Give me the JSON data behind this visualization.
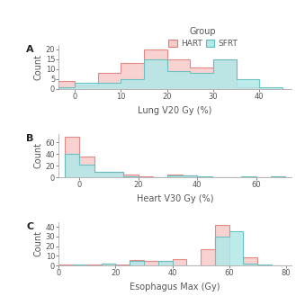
{
  "title_legend": "Group",
  "panel_labels": [
    "A",
    "B",
    "C"
  ],
  "panel_A": {
    "xlabel": "Lung V20 Gy (%)",
    "ylabel": "Count",
    "xlim": [
      -3.5,
      47
    ],
    "ylim": [
      0,
      22
    ],
    "yticks": [
      0,
      5,
      10,
      15,
      20
    ],
    "xticks": [
      0,
      10,
      20,
      30,
      40
    ],
    "bin_edges": [
      -5,
      0,
      5,
      10,
      15,
      20,
      25,
      30,
      35,
      40,
      45
    ],
    "hart_counts": [
      4,
      2,
      8,
      13,
      20,
      15,
      11,
      15,
      1,
      0
    ],
    "sfrt_counts": [
      1,
      3,
      3,
      5,
      15,
      9,
      8,
      15,
      5,
      1
    ]
  },
  "panel_B": {
    "xlabel": "Heart V30 Gy (%)",
    "ylabel": "Count",
    "xlim": [
      -7,
      72
    ],
    "ylim": [
      0,
      75
    ],
    "yticks": [
      0,
      20,
      40,
      60
    ],
    "xticks": [
      0,
      20,
      40,
      60
    ],
    "bin_edges": [
      -5,
      0,
      5,
      10,
      15,
      20,
      25,
      30,
      35,
      40,
      45,
      50,
      55,
      60,
      65,
      70
    ],
    "hart_counts": [
      70,
      35,
      10,
      9,
      5,
      2,
      0,
      5,
      3,
      0,
      0,
      0,
      0,
      0,
      1
    ],
    "sfrt_counts": [
      41,
      22,
      10,
      9,
      2,
      0,
      0,
      4,
      3,
      1,
      0,
      0,
      2,
      0,
      1
    ]
  },
  "panel_C": {
    "xlabel": "Esophagus Max (Gy)",
    "ylabel": "Count",
    "xlim": [
      0,
      82
    ],
    "ylim": [
      0,
      45
    ],
    "yticks": [
      0,
      10,
      20,
      30,
      40
    ],
    "xticks": [
      0,
      20,
      40,
      60,
      80
    ],
    "bin_edges": [
      0,
      5,
      10,
      15,
      20,
      25,
      30,
      35,
      40,
      45,
      50,
      55,
      60,
      65,
      70,
      75,
      80
    ],
    "hart_counts": [
      1,
      0,
      1,
      2,
      1,
      6,
      5,
      5,
      7,
      0,
      17,
      42,
      0,
      9,
      0,
      0
    ],
    "sfrt_counts": [
      0,
      1,
      0,
      2,
      0,
      5,
      0,
      5,
      0,
      0,
      0,
      30,
      35,
      2,
      1,
      0
    ]
  },
  "hart_facecolor": "#f7cac9",
  "hart_edgecolor": "#e07a75",
  "sfrt_facecolor": "#b2e8e8",
  "sfrt_edgecolor": "#5bbcbc",
  "bg_color": "#ffffff",
  "axis_color": "#aaaaaa",
  "text_color": "#555555",
  "font_size": 7,
  "tick_size": 6,
  "line_width": 0.8
}
